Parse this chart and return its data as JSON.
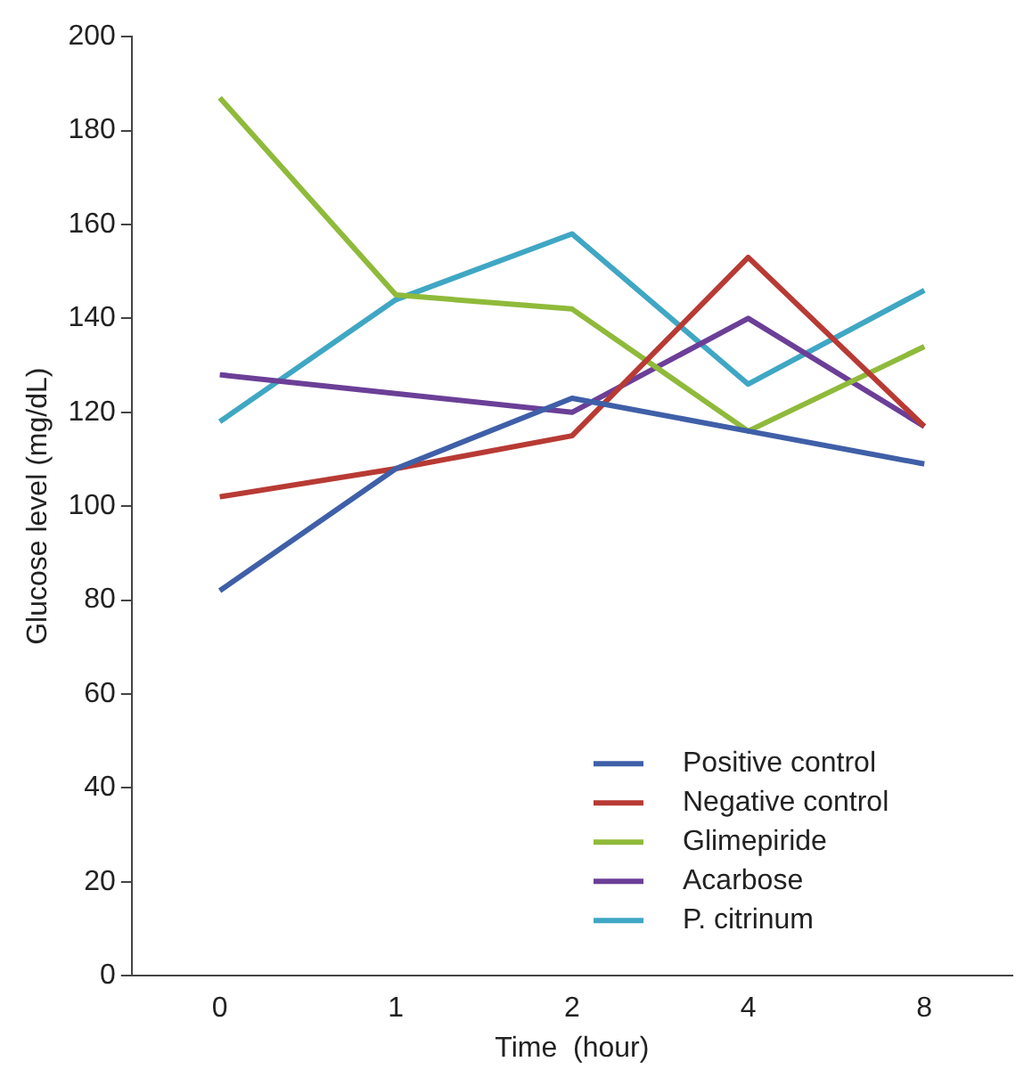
{
  "chart_data": {
    "type": "line",
    "xlabel": "Time  (hour)",
    "ylabel": "Glucose level (mg/dL)",
    "categories": [
      "0",
      "1",
      "2",
      "4",
      "8"
    ],
    "series": [
      {
        "name": "Positive control",
        "color": "#3f5fa8",
        "values": [
          82,
          108,
          123,
          116,
          109
        ]
      },
      {
        "name": "Negative control",
        "color": "#b83a34",
        "values": [
          102,
          108,
          115,
          153,
          117
        ]
      },
      {
        "name": "Glimepiride",
        "color": "#8fba3a",
        "values": [
          187,
          145,
          142,
          116,
          134
        ]
      },
      {
        "name": "Acarbose",
        "color": "#6b3f97",
        "values": [
          128,
          124,
          120,
          140,
          117
        ]
      },
      {
        "name": "P. citrinum",
        "color": "#3fa7c4",
        "values": [
          118,
          144,
          158,
          126,
          146
        ]
      }
    ],
    "ylim": [
      0,
      200
    ],
    "yticks": [
      0,
      20,
      40,
      60,
      80,
      100,
      120,
      140,
      160,
      180,
      200
    ],
    "grid": false,
    "legend": "bottom right",
    "marker": "none",
    "line_style": "solid"
  }
}
